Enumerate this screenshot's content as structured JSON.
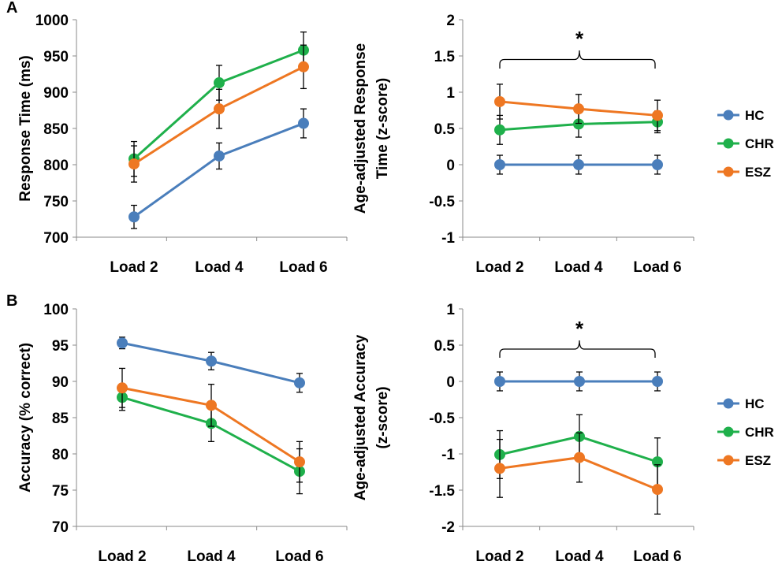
{
  "chart_data": [
    {
      "id": "A-left",
      "type": "line",
      "panel_label": "A",
      "ylabel": "Response Time (ms)",
      "categories": [
        "Load 2",
        "Load 4",
        "Load 6"
      ],
      "ylim": [
        700,
        1000
      ],
      "yticks": [
        700,
        750,
        800,
        850,
        900,
        950,
        1000
      ],
      "ytick_labels": [
        "700",
        "750",
        "800",
        "850",
        "900",
        "950",
        "1000"
      ],
      "series": [
        {
          "name": "HC",
          "color": "#4a7ebb",
          "values": [
            728,
            812,
            857
          ],
          "err": [
            16,
            18,
            20
          ]
        },
        {
          "name": "CHR",
          "color": "#1fb04b",
          "values": [
            808,
            913,
            958
          ],
          "err": [
            24,
            24,
            25
          ]
        },
        {
          "name": "ESZ",
          "color": "#ee7722",
          "values": [
            801,
            877,
            935
          ],
          "err": [
            25,
            27,
            30
          ]
        }
      ]
    },
    {
      "id": "A-right",
      "type": "line",
      "ylabel": [
        "Age-adjusted Response",
        "Time (z-score)"
      ],
      "categories": [
        "Load 2",
        "Load 4",
        "Load 6"
      ],
      "ylim": [
        -1,
        2
      ],
      "yticks": [
        -1,
        -0.5,
        0,
        0.5,
        1,
        1.5,
        2
      ],
      "ytick_labels": [
        "-1",
        "-0.5",
        "0",
        "0.5",
        "1",
        "1.5",
        "2"
      ],
      "annotation": "*",
      "legend": [
        "HC",
        "CHR",
        "ESZ"
      ],
      "series": [
        {
          "name": "HC",
          "color": "#4a7ebb",
          "values": [
            0,
            0,
            0
          ],
          "err": [
            0.13,
            0.13,
            0.13
          ]
        },
        {
          "name": "CHR",
          "color": "#1fb04b",
          "values": [
            0.48,
            0.56,
            0.59
          ],
          "err": [
            0.2,
            0.18,
            0.15
          ]
        },
        {
          "name": "ESZ",
          "color": "#ee7722",
          "values": [
            0.87,
            0.77,
            0.68
          ],
          "err": [
            0.24,
            0.2,
            0.21
          ]
        }
      ]
    },
    {
      "id": "B-left",
      "type": "line",
      "panel_label": "B",
      "ylabel": "Accuracy (% correct)",
      "categories": [
        "Load 2",
        "Load 4",
        "Load 6"
      ],
      "ylim": [
        70,
        100
      ],
      "yticks": [
        70,
        75,
        80,
        85,
        90,
        95,
        100
      ],
      "ytick_labels": [
        "70",
        "75",
        "80",
        "85",
        "90",
        "95",
        "100"
      ],
      "series": [
        {
          "name": "HC",
          "color": "#4a7ebb",
          "values": [
            95.3,
            92.8,
            89.8
          ],
          "err": [
            0.8,
            1.2,
            1.3
          ]
        },
        {
          "name": "CHR",
          "color": "#1fb04b",
          "values": [
            87.8,
            84.2,
            77.6
          ],
          "err": [
            1.8,
            2.5,
            3.1
          ]
        },
        {
          "name": "ESZ",
          "color": "#ee7722",
          "values": [
            89.1,
            86.7,
            78.9
          ],
          "err": [
            2.7,
            2.9,
            2.8
          ]
        }
      ]
    },
    {
      "id": "B-right",
      "type": "line",
      "ylabel": [
        "Age-adjusted Accuracy",
        "(z-score)"
      ],
      "categories": [
        "Load 2",
        "Load 4",
        "Load 6"
      ],
      "ylim": [
        -2,
        1
      ],
      "yticks": [
        -2,
        -1.5,
        -1,
        -0.5,
        0,
        0.5,
        1
      ],
      "ytick_labels": [
        "-2",
        "-1.5",
        "-1",
        "-0.5",
        "0",
        "0.5",
        "1"
      ],
      "annotation": "*",
      "legend": [
        "HC",
        "CHR",
        "ESZ"
      ],
      "series": [
        {
          "name": "HC",
          "color": "#4a7ebb",
          "values": [
            0,
            0,
            0
          ],
          "err": [
            0.13,
            0.13,
            0.13
          ]
        },
        {
          "name": "CHR",
          "color": "#1fb04b",
          "values": [
            -1.01,
            -0.76,
            -1.11
          ],
          "err": [
            0.33,
            0.3,
            0.33
          ]
        },
        {
          "name": "ESZ",
          "color": "#ee7722",
          "values": [
            -1.2,
            -1.05,
            -1.49
          ],
          "err": [
            0.4,
            0.34,
            0.34
          ]
        }
      ]
    }
  ]
}
